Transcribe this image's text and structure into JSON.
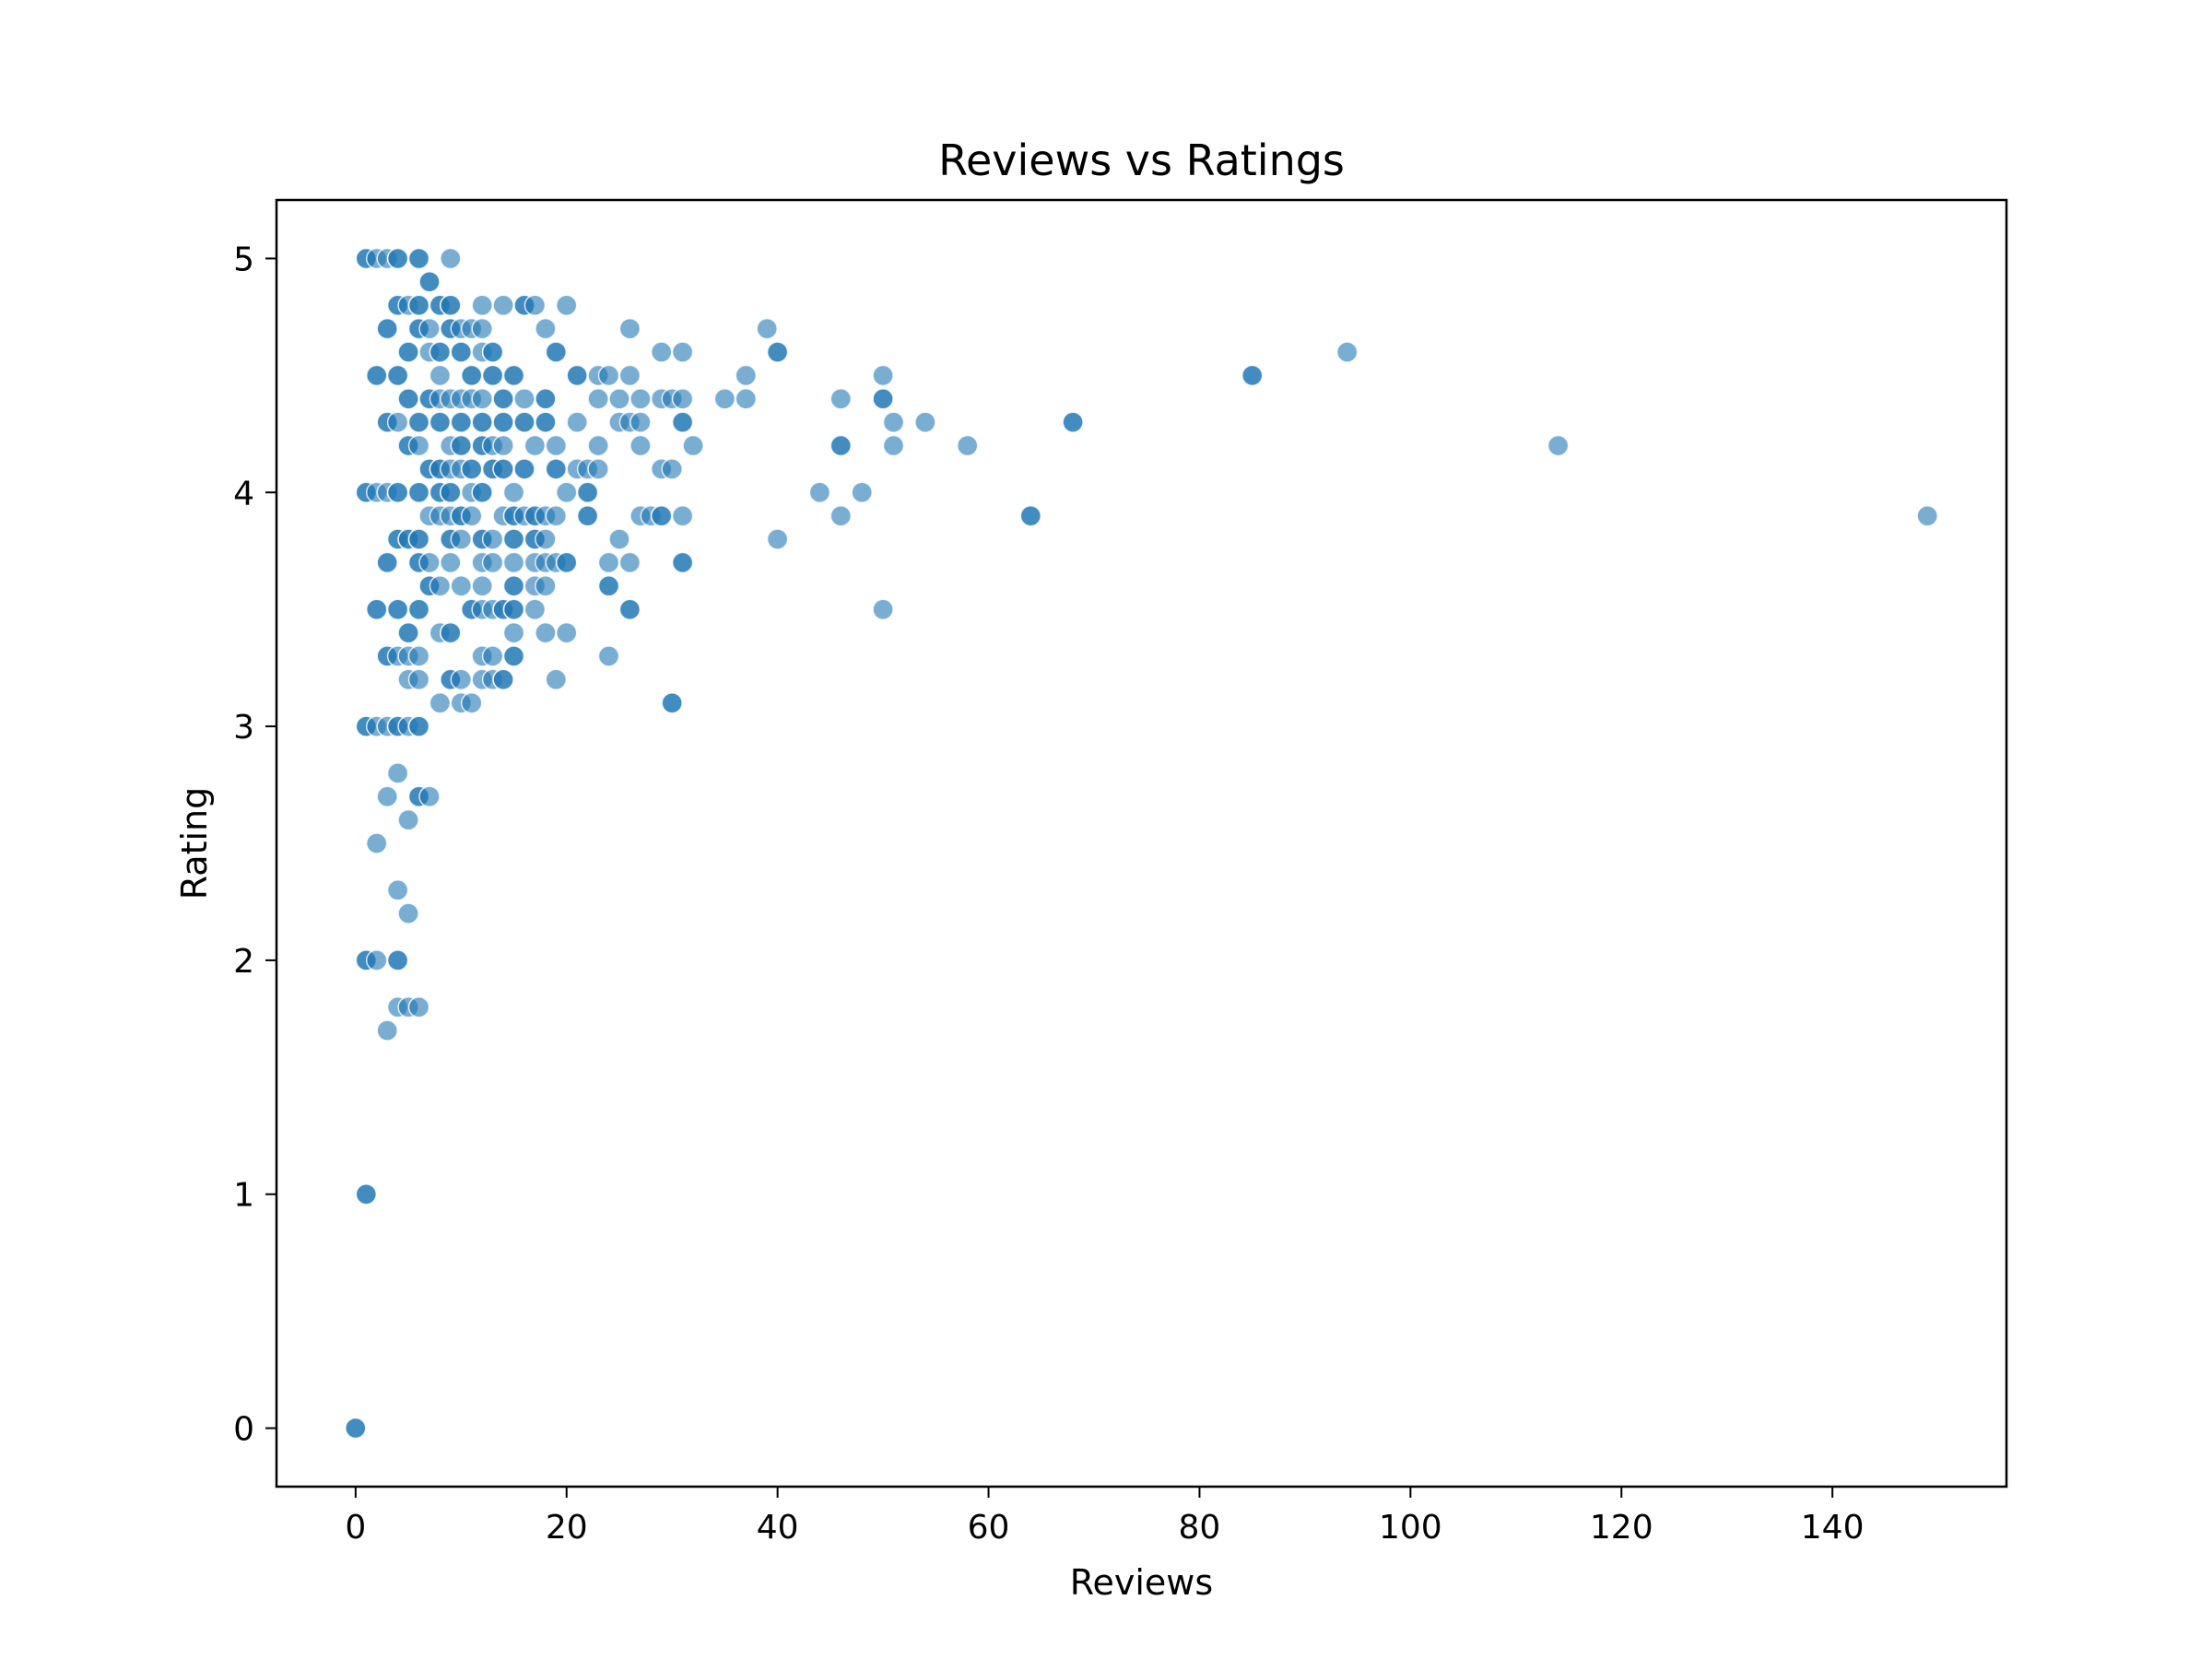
{
  "chart_data": {
    "type": "scatter",
    "title": "Reviews vs Ratings",
    "xlabel": "Reviews",
    "ylabel": "Rating",
    "xlim": [
      -7.5,
      156.5
    ],
    "ylim": [
      -0.25,
      5.25
    ],
    "xticks": [
      "0",
      "20",
      "40",
      "60",
      "80",
      "100",
      "120",
      "140"
    ],
    "yticks": [
      "0",
      "1",
      "2",
      "3",
      "4",
      "5"
    ],
    "grid": false,
    "legend": "none",
    "marker_color": "#1f77b4",
    "marker_alpha": 0.6,
    "points": [
      [
        0,
        0
      ],
      [
        0,
        0
      ],
      [
        1,
        1
      ],
      [
        1,
        1
      ],
      [
        2,
        2.5
      ],
      [
        1,
        2
      ],
      [
        1,
        2
      ],
      [
        2,
        2
      ],
      [
        4,
        2
      ],
      [
        4,
        2
      ],
      [
        4,
        1.8
      ],
      [
        5,
        1.8
      ],
      [
        6,
        1.8
      ],
      [
        3,
        1.7
      ],
      [
        4,
        2.3
      ],
      [
        5,
        2.2
      ],
      [
        4,
        2.8
      ],
      [
        3,
        2.7
      ],
      [
        5,
        2.6
      ],
      [
        6,
        2.7
      ],
      [
        6,
        2.7
      ],
      [
        7,
        2.7
      ],
      [
        1,
        3
      ],
      [
        1,
        3
      ],
      [
        2,
        3
      ],
      [
        3,
        3
      ],
      [
        4,
        3
      ],
      [
        4,
        3
      ],
      [
        5,
        3
      ],
      [
        6,
        3
      ],
      [
        6,
        3
      ],
      [
        3,
        3.3
      ],
      [
        3,
        3.3
      ],
      [
        4,
        3.3
      ],
      [
        5,
        3.3
      ],
      [
        6,
        3.3
      ],
      [
        5,
        3.2
      ],
      [
        6,
        3.2
      ],
      [
        9,
        3.2
      ],
      [
        9,
        3.2
      ],
      [
        10,
        3.2
      ],
      [
        12,
        3.2
      ],
      [
        13,
        3.2
      ],
      [
        14,
        3.2
      ],
      [
        14,
        3.2
      ],
      [
        19,
        3.2
      ],
      [
        12,
        3.3
      ],
      [
        13,
        3.3
      ],
      [
        15,
        3.3
      ],
      [
        15,
        3.3
      ],
      [
        24,
        3.3
      ],
      [
        8,
        3.1
      ],
      [
        10,
        3.1
      ],
      [
        11,
        3.1
      ],
      [
        30,
        3.1
      ],
      [
        30,
        3.1
      ],
      [
        2,
        3.5
      ],
      [
        2,
        3.5
      ],
      [
        4,
        3.5
      ],
      [
        4,
        3.5
      ],
      [
        6,
        3.5
      ],
      [
        6,
        3.5
      ],
      [
        11,
        3.5
      ],
      [
        11,
        3.5
      ],
      [
        12,
        3.5
      ],
      [
        13,
        3.5
      ],
      [
        14,
        3.5
      ],
      [
        14,
        3.5
      ],
      [
        15,
        3.5
      ],
      [
        15,
        3.5
      ],
      [
        17,
        3.5
      ],
      [
        26,
        3.5
      ],
      [
        26,
        3.5
      ],
      [
        50,
        3.5
      ],
      [
        5,
        3.4
      ],
      [
        5,
        3.4
      ],
      [
        8,
        3.4
      ],
      [
        9,
        3.4
      ],
      [
        9,
        3.4
      ],
      [
        15,
        3.4
      ],
      [
        18,
        3.4
      ],
      [
        20,
        3.4
      ],
      [
        3,
        3.7
      ],
      [
        3,
        3.7
      ],
      [
        6,
        3.7
      ],
      [
        6,
        3.7
      ],
      [
        7,
        3.7
      ],
      [
        9,
        3.7
      ],
      [
        12,
        3.7
      ],
      [
        13,
        3.7
      ],
      [
        15,
        3.7
      ],
      [
        17,
        3.7
      ],
      [
        18,
        3.7
      ],
      [
        19,
        3.7
      ],
      [
        20,
        3.7
      ],
      [
        20,
        3.7
      ],
      [
        24,
        3.7
      ],
      [
        26,
        3.7
      ],
      [
        31,
        3.7
      ],
      [
        31,
        3.7
      ],
      [
        7,
        3.6
      ],
      [
        7,
        3.6
      ],
      [
        8,
        3.6
      ],
      [
        10,
        3.6
      ],
      [
        12,
        3.6
      ],
      [
        15,
        3.6
      ],
      [
        15,
        3.6
      ],
      [
        17,
        3.6
      ],
      [
        18,
        3.6
      ],
      [
        24,
        3.6
      ],
      [
        24,
        3.6
      ],
      [
        4,
        3.8
      ],
      [
        4,
        3.8
      ],
      [
        5,
        3.8
      ],
      [
        5,
        3.8
      ],
      [
        6,
        3.8
      ],
      [
        6,
        3.8
      ],
      [
        9,
        3.8
      ],
      [
        9,
        3.8
      ],
      [
        10,
        3.8
      ],
      [
        12,
        3.8
      ],
      [
        12,
        3.8
      ],
      [
        13,
        3.8
      ],
      [
        15,
        3.8
      ],
      [
        15,
        3.8
      ],
      [
        17,
        3.8
      ],
      [
        17,
        3.8
      ],
      [
        18,
        3.8
      ],
      [
        25,
        3.8
      ],
      [
        40,
        3.8
      ],
      [
        7,
        3.9
      ],
      [
        8,
        3.9
      ],
      [
        9,
        3.9
      ],
      [
        10,
        3.9
      ],
      [
        10,
        3.9
      ],
      [
        11,
        3.9
      ],
      [
        14,
        3.9
      ],
      [
        15,
        3.9
      ],
      [
        15,
        3.9
      ],
      [
        16,
        3.9
      ],
      [
        17,
        3.9
      ],
      [
        17,
        3.9
      ],
      [
        18,
        3.9
      ],
      [
        19,
        3.9
      ],
      [
        22,
        3.9
      ],
      [
        22,
        3.9
      ],
      [
        27,
        3.9
      ],
      [
        28,
        3.9
      ],
      [
        29,
        3.9
      ],
      [
        29,
        3.9
      ],
      [
        31,
        3.9
      ],
      [
        46,
        3.9
      ],
      [
        64,
        3.9
      ],
      [
        64,
        3.9
      ],
      [
        149,
        3.9
      ],
      [
        1,
        4
      ],
      [
        1,
        4
      ],
      [
        2,
        4
      ],
      [
        3,
        4
      ],
      [
        4,
        4
      ],
      [
        4,
        4
      ],
      [
        6,
        4
      ],
      [
        6,
        4
      ],
      [
        8,
        4
      ],
      [
        8,
        4
      ],
      [
        9,
        4
      ],
      [
        9,
        4
      ],
      [
        11,
        4
      ],
      [
        12,
        4
      ],
      [
        12,
        4
      ],
      [
        15,
        4
      ],
      [
        20,
        4
      ],
      [
        22,
        4
      ],
      [
        22,
        4
      ],
      [
        44,
        4
      ],
      [
        48,
        4
      ],
      [
        7,
        4.1
      ],
      [
        7,
        4.1
      ],
      [
        8,
        4.1
      ],
      [
        8,
        4.1
      ],
      [
        9,
        4.1
      ],
      [
        10,
        4.1
      ],
      [
        11,
        4.1
      ],
      [
        11,
        4.1
      ],
      [
        13,
        4.1
      ],
      [
        13,
        4.1
      ],
      [
        14,
        4.1
      ],
      [
        14,
        4.1
      ],
      [
        16,
        4.1
      ],
      [
        16,
        4.1
      ],
      [
        19,
        4.1
      ],
      [
        19,
        4.1
      ],
      [
        21,
        4.1
      ],
      [
        22,
        4.1
      ],
      [
        23,
        4.1
      ],
      [
        29,
        4.1
      ],
      [
        30,
        4.1
      ],
      [
        5,
        4.2
      ],
      [
        5,
        4.2
      ],
      [
        6,
        4.2
      ],
      [
        9,
        4.2
      ],
      [
        10,
        4.2
      ],
      [
        10,
        4.2
      ],
      [
        12,
        4.2
      ],
      [
        12,
        4.2
      ],
      [
        13,
        4.2
      ],
      [
        14,
        4.2
      ],
      [
        17,
        4.2
      ],
      [
        19,
        4.2
      ],
      [
        23,
        4.2
      ],
      [
        27,
        4.2
      ],
      [
        32,
        4.2
      ],
      [
        46,
        4.2
      ],
      [
        46,
        4.2
      ],
      [
        51,
        4.2
      ],
      [
        58,
        4.2
      ],
      [
        114,
        4.2
      ],
      [
        3,
        4.3
      ],
      [
        3,
        4.3
      ],
      [
        4,
        4.3
      ],
      [
        6,
        4.3
      ],
      [
        6,
        4.3
      ],
      [
        8,
        4.3
      ],
      [
        8,
        4.3
      ],
      [
        10,
        4.3
      ],
      [
        10,
        4.3
      ],
      [
        12,
        4.3
      ],
      [
        12,
        4.3
      ],
      [
        14,
        4.3
      ],
      [
        14,
        4.3
      ],
      [
        16,
        4.3
      ],
      [
        16,
        4.3
      ],
      [
        18,
        4.3
      ],
      [
        18,
        4.3
      ],
      [
        21,
        4.3
      ],
      [
        25,
        4.3
      ],
      [
        26,
        4.3
      ],
      [
        27,
        4.3
      ],
      [
        31,
        4.3
      ],
      [
        31,
        4.3
      ],
      [
        51,
        4.3
      ],
      [
        54,
        4.3
      ],
      [
        68,
        4.3
      ],
      [
        68,
        4.3
      ],
      [
        5,
        4.4
      ],
      [
        5,
        4.4
      ],
      [
        7,
        4.4
      ],
      [
        7,
        4.4
      ],
      [
        8,
        4.4
      ],
      [
        9,
        4.4
      ],
      [
        10,
        4.4
      ],
      [
        11,
        4.4
      ],
      [
        12,
        4.4
      ],
      [
        14,
        4.4
      ],
      [
        14,
        4.4
      ],
      [
        16,
        4.4
      ],
      [
        18,
        4.4
      ],
      [
        18,
        4.4
      ],
      [
        23,
        4.4
      ],
      [
        25,
        4.4
      ],
      [
        27,
        4.4
      ],
      [
        29,
        4.4
      ],
      [
        30,
        4.4
      ],
      [
        31,
        4.4
      ],
      [
        35,
        4.4
      ],
      [
        37,
        4.4
      ],
      [
        46,
        4.4
      ],
      [
        50,
        4.4
      ],
      [
        50,
        4.4
      ],
      [
        2,
        4.5
      ],
      [
        2,
        4.5
      ],
      [
        4,
        4.5
      ],
      [
        4,
        4.5
      ],
      [
        8,
        4.5
      ],
      [
        11,
        4.5
      ],
      [
        11,
        4.5
      ],
      [
        13,
        4.5
      ],
      [
        13,
        4.5
      ],
      [
        15,
        4.5
      ],
      [
        15,
        4.5
      ],
      [
        21,
        4.5
      ],
      [
        21,
        4.5
      ],
      [
        23,
        4.5
      ],
      [
        24,
        4.5
      ],
      [
        26,
        4.5
      ],
      [
        37,
        4.5
      ],
      [
        50,
        4.5
      ],
      [
        85,
        4.5
      ],
      [
        85,
        4.5
      ],
      [
        5,
        4.6
      ],
      [
        5,
        4.6
      ],
      [
        7,
        4.6
      ],
      [
        8,
        4.6
      ],
      [
        8,
        4.6
      ],
      [
        10,
        4.6
      ],
      [
        10,
        4.6
      ],
      [
        12,
        4.6
      ],
      [
        13,
        4.6
      ],
      [
        13,
        4.6
      ],
      [
        19,
        4.6
      ],
      [
        19,
        4.6
      ],
      [
        29,
        4.6
      ],
      [
        31,
        4.6
      ],
      [
        40,
        4.6
      ],
      [
        40,
        4.6
      ],
      [
        94,
        4.6
      ],
      [
        3,
        4.7
      ],
      [
        3,
        4.7
      ],
      [
        6,
        4.7
      ],
      [
        6,
        4.7
      ],
      [
        7,
        4.7
      ],
      [
        9,
        4.7
      ],
      [
        9,
        4.7
      ],
      [
        10,
        4.7
      ],
      [
        11,
        4.7
      ],
      [
        12,
        4.7
      ],
      [
        18,
        4.7
      ],
      [
        26,
        4.7
      ],
      [
        39,
        4.7
      ],
      [
        4,
        4.8
      ],
      [
        4,
        4.8
      ],
      [
        5,
        4.8
      ],
      [
        6,
        4.8
      ],
      [
        6,
        4.8
      ],
      [
        8,
        4.8
      ],
      [
        8,
        4.8
      ],
      [
        9,
        4.8
      ],
      [
        9,
        4.8
      ],
      [
        12,
        4.8
      ],
      [
        14,
        4.8
      ],
      [
        16,
        4.8
      ],
      [
        16,
        4.8
      ],
      [
        17,
        4.8
      ],
      [
        20,
        4.8
      ],
      [
        7,
        4.9
      ],
      [
        7,
        4.9
      ],
      [
        1,
        5
      ],
      [
        1,
        5
      ],
      [
        2,
        5
      ],
      [
        3,
        5
      ],
      [
        4,
        5
      ],
      [
        4,
        5
      ],
      [
        6,
        5
      ],
      [
        6,
        5
      ],
      [
        9,
        5
      ]
    ]
  }
}
